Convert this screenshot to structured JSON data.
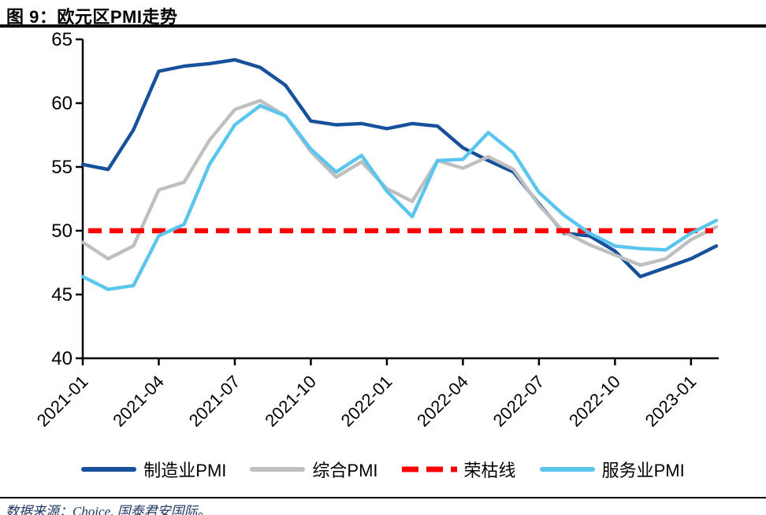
{
  "header": {
    "title": "图 9：欧元区PMI走势"
  },
  "footer": {
    "source": "数据来源：Choice, 国泰君安国际。"
  },
  "colors": {
    "manufacturing": "#17509B",
    "composite": "#BFBFBF",
    "refline": "#FE0000",
    "services": "#5AC6EE",
    "axis": "#000000",
    "rule": "#000000",
    "source_text": "#1F3864"
  },
  "legend": [
    {
      "id": "manufacturing",
      "label": "制造业PMI",
      "color": "#17509B",
      "style": "solid"
    },
    {
      "id": "composite",
      "label": "综合PMI",
      "color": "#BFBFBF",
      "style": "solid"
    },
    {
      "id": "refline",
      "label": "荣枯线",
      "color": "#FE0000",
      "style": "dashed"
    },
    {
      "id": "services",
      "label": "服务业PMI",
      "color": "#5AC6EE",
      "style": "solid"
    }
  ],
  "chart_data": {
    "type": "line",
    "title": "欧元区PMI走势",
    "xlabel": "",
    "ylabel": "",
    "ylim": [
      40,
      65
    ],
    "y_ticks": [
      40,
      45,
      50,
      55,
      60,
      65
    ],
    "grid": false,
    "legend_position": "bottom",
    "x": [
      "2021-01",
      "2021-02",
      "2021-03",
      "2021-04",
      "2021-05",
      "2021-06",
      "2021-07",
      "2021-08",
      "2021-09",
      "2021-10",
      "2021-11",
      "2021-12",
      "2022-01",
      "2022-02",
      "2022-03",
      "2022-04",
      "2022-05",
      "2022-06",
      "2022-07",
      "2022-08",
      "2022-09",
      "2022-10",
      "2022-11",
      "2022-12",
      "2023-01",
      "2023-02"
    ],
    "x_tick_labels": [
      "2021-01",
      "2021-04",
      "2021-07",
      "2021-10",
      "2022-01",
      "2022-04",
      "2022-07",
      "2022-10",
      "2023-01"
    ],
    "series": [
      {
        "id": "manufacturing",
        "name": "制造业PMI",
        "color": "#17509B",
        "dash": false,
        "values": [
          55.2,
          54.8,
          57.9,
          62.5,
          62.9,
          63.1,
          63.4,
          62.8,
          61.4,
          58.6,
          58.3,
          58.4,
          58.0,
          58.4,
          58.2,
          56.5,
          55.5,
          54.6,
          52.1,
          49.8,
          49.6,
          48.4,
          46.4,
          47.1,
          47.8,
          48.8
        ]
      },
      {
        "id": "composite",
        "name": "综合PMI",
        "color": "#BFBFBF",
        "dash": false,
        "values": [
          49.1,
          47.8,
          48.8,
          53.2,
          53.8,
          57.1,
          59.5,
          60.2,
          59.0,
          56.2,
          54.2,
          55.4,
          53.3,
          52.3,
          55.5,
          54.9,
          55.8,
          54.8,
          52.0,
          49.9,
          48.9,
          48.1,
          47.3,
          47.8,
          49.3,
          50.3
        ]
      },
      {
        "id": "refline",
        "name": "荣枯线",
        "color": "#FE0000",
        "dash": true,
        "refvalue": 50
      },
      {
        "id": "services",
        "name": "服务业PMI",
        "color": "#5AC6EE",
        "dash": false,
        "values": [
          46.4,
          45.4,
          45.7,
          49.6,
          50.5,
          55.2,
          58.3,
          59.8,
          59.0,
          56.4,
          54.6,
          55.9,
          53.1,
          51.1,
          55.5,
          55.6,
          57.7,
          56.1,
          53.0,
          51.2,
          49.8,
          48.8,
          48.6,
          48.5,
          49.8,
          50.8
        ]
      }
    ]
  }
}
